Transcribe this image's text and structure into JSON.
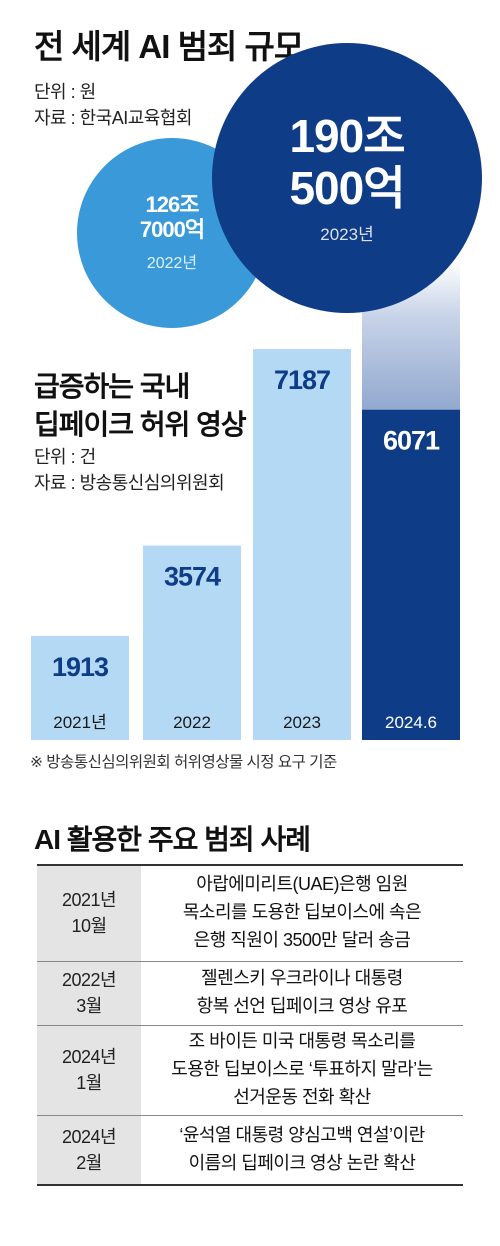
{
  "section1": {
    "title": "전 세계 AI 범죄 규모",
    "unit": "단위 : 원",
    "source": "자료 : 한국AI교육협회"
  },
  "circles": [
    {
      "line1": "126조",
      "line2": "7000억",
      "year": "2022년",
      "color": "#3a9ad9"
    },
    {
      "line1": "190조",
      "line2": "500억",
      "year": "2023년",
      "color": "#0f3c86"
    }
  ],
  "section2": {
    "title_line1": "급증하는 국내",
    "title_line2": "딥페이크 허위 영상",
    "unit": "단위 : 건",
    "source": "자료 : 방송통신심의위원회"
  },
  "chart_data": {
    "type": "bar",
    "categories": [
      "2021년",
      "2022",
      "2023",
      "2024.6"
    ],
    "values": [
      1913,
      3574,
      7187,
      6071
    ],
    "value_labels": [
      "1913",
      "3574",
      "7187",
      "6071"
    ],
    "ylim": [
      0,
      7500
    ],
    "colors": [
      "#b3d9f5",
      "#b3d9f5",
      "#b3d9f5",
      "#0f3c86"
    ],
    "value_colors": [
      "#0f3c86",
      "#0f3c86",
      "#0f3c86",
      "#ffffff"
    ],
    "category_colors": [
      "#1a1a1a",
      "#1a1a1a",
      "#1a1a1a",
      "#ffffff"
    ]
  },
  "note": "※ 방송통신심의위원회 허위영상물 시정 요구 기준",
  "section3": {
    "title": "AI 활용한 주요 범죄 사례",
    "rows": [
      {
        "date_line1": "2021년",
        "date_line2": "10월",
        "desc_lines": [
          "아랍에미리트(UAE)은행 임원",
          "목소리를 도용한 딥보이스에 속은",
          "은행 직원이 3500만 달러 송금"
        ]
      },
      {
        "date_line1": "2022년",
        "date_line2": "3월",
        "desc_lines": [
          "젤렌스키 우크라이나 대통령",
          "항복 선언 딥페이크 영상 유포"
        ]
      },
      {
        "date_line1": "2024년",
        "date_line2": "1월",
        "desc_lines": [
          "조 바이든 미국 대통령 목소리를",
          "도용한 딥보이스로 ‘투표하지 말라’는",
          "선거운동 전화 확산"
        ]
      },
      {
        "date_line1": "2024년",
        "date_line2": "2월",
        "desc_lines": [
          "‘윤석열 대통령 양심고백 연설’이란",
          "이름의 딥페이크 영상 논란 확산"
        ]
      }
    ]
  }
}
